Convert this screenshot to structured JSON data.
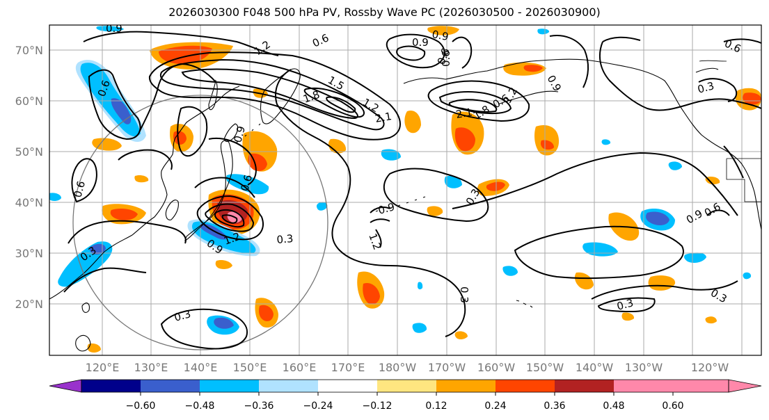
{
  "title": "2026030300 F048 500 hPa PV, Rossby Wave PC (2026030500 - 2026030900)",
  "map": {
    "lat_labels": [
      "70°N",
      "60°N",
      "50°N",
      "40°N",
      "30°N",
      "20°N"
    ],
    "lat_values": [
      70,
      60,
      50,
      40,
      30,
      20
    ],
    "lon_labels": [
      "120°E",
      "130°E",
      "140°E",
      "150°E",
      "160°E",
      "170°E",
      "180°W",
      "170°W",
      "160°W",
      "150°W",
      "140°W",
      "130°W",
      "120°W"
    ],
    "lon_values": [
      120,
      130,
      140,
      150,
      160,
      170,
      180,
      190,
      200,
      210,
      220,
      230,
      240
    ],
    "contour_labels": [
      "0.9",
      "0.6",
      "1.2",
      "1.2",
      "0.6",
      "0.9",
      "1.5",
      "1.8",
      "2.1",
      "0.9",
      "0.6",
      "0.6",
      "0.9",
      "1.2",
      "2.1",
      "1.8",
      "0.9",
      "0.3",
      "0.6",
      "0.6",
      "0.9",
      "0.6",
      "1.2",
      "0.3",
      "0.6",
      "0.9",
      "1.2",
      "0.3",
      "0.3",
      "0.3",
      "0.3",
      "0.3",
      "0.3",
      "0.6",
      "0.9"
    ]
  },
  "colorbar": {
    "ticks": [
      "−0.60",
      "−0.48",
      "−0.36",
      "−0.24",
      "−0.12",
      "0.12",
      "0.24",
      "0.36",
      "0.48",
      "0.60"
    ],
    "colors": [
      "#9932cc",
      "#00008b",
      "#3a5fcd",
      "#00bfff",
      "#b0e2ff",
      "#ffffff",
      "#ffe680",
      "#ffa500",
      "#ff4500",
      "#b22222",
      "#ff88aa",
      "#ff88aa"
    ]
  }
}
